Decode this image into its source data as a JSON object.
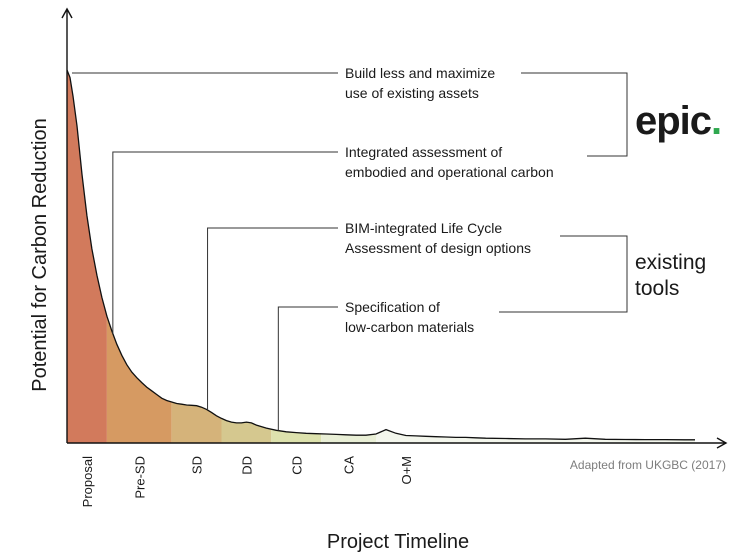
{
  "chart_data": {
    "type": "area",
    "xlabel": "Project Timeline",
    "ylabel": "Potential for Carbon Reduction",
    "source_note": "Adapted from UKGBC (2017)",
    "phases": [
      {
        "label": "Proposal",
        "color": "#d27a5c"
      },
      {
        "label": "Pre-SD",
        "color": "#d69a62"
      },
      {
        "label": "SD",
        "color": "#d5b37a"
      },
      {
        "label": "DD",
        "color": "#d5c88f"
      },
      {
        "label": "CD",
        "color": "#dde2ad"
      },
      {
        "label": "CA",
        "color": "#e9efd6"
      },
      {
        "label": "O+M",
        "color": "#f3f6ec"
      }
    ],
    "curve": {
      "x": [
        0,
        0.3,
        0.6,
        1,
        1.5,
        2,
        2.5,
        3,
        3.5,
        4,
        4.5,
        5,
        5.5,
        6,
        6.5,
        7,
        7.5,
        8,
        8.5,
        9,
        9.5,
        10,
        10.5,
        11,
        11.5,
        12,
        12.5,
        13,
        13.5,
        14,
        14.5,
        15,
        15.5,
        16,
        16.5,
        17,
        17.5,
        18,
        18.5,
        19,
        20,
        21,
        22,
        23,
        24,
        25,
        26,
        27,
        28,
        29,
        30,
        31,
        32,
        33,
        34,
        35,
        36,
        37,
        38,
        39,
        40,
        41,
        42,
        44,
        46,
        48,
        50,
        52,
        54,
        56,
        58,
        60,
        62,
        63
      ],
      "y": [
        100,
        98,
        93,
        85,
        72,
        61,
        52,
        45,
        39,
        34,
        30,
        26.5,
        23.5,
        21,
        19,
        17.5,
        16.2,
        15,
        14,
        13,
        12,
        11.4,
        11,
        10.6,
        10.4,
        10.2,
        10.1,
        10,
        9.6,
        9,
        8.2,
        7.3,
        6.6,
        6,
        5.6,
        5.4,
        5.4,
        5.6,
        5.4,
        4.8,
        4,
        3.4,
        3,
        2.8,
        2.6,
        2.5,
        2.4,
        2.3,
        2.2,
        2.1,
        2.1,
        2.4,
        3.6,
        2.6,
        2,
        1.9,
        1.8,
        1.7,
        1.6,
        1.5,
        1.5,
        1.4,
        1.3,
        1.2,
        1.1,
        1.1,
        1.0,
        1.3,
        1.0,
        0.95,
        0.9,
        0.9,
        0.85,
        0.85
      ],
      "phase_bounds": [
        0,
        4,
        10.5,
        15.5,
        20.5,
        25.5,
        31,
        63
      ]
    },
    "annotations": [
      {
        "lines": [
          "Build less and maximize",
          "use of existing assets"
        ],
        "x": 0.5,
        "group": "epic"
      },
      {
        "lines": [
          "Integrated assessment of",
          "embodied and operational carbon"
        ],
        "x": 4.6,
        "group": "epic"
      },
      {
        "lines": [
          "BIM-integrated Life Cycle",
          "Assessment of design options"
        ],
        "x": 14.1,
        "group": "existing"
      },
      {
        "lines": [
          "Specification of",
          "low-carbon materials"
        ],
        "x": 21.2,
        "group": "existing"
      }
    ],
    "brackets": [
      {
        "label": "epic.",
        "brand_dot_color": "#2fa84f",
        "text_color": "#1a1a1a"
      },
      {
        "label_lines": [
          "existing",
          "tools"
        ]
      }
    ]
  }
}
